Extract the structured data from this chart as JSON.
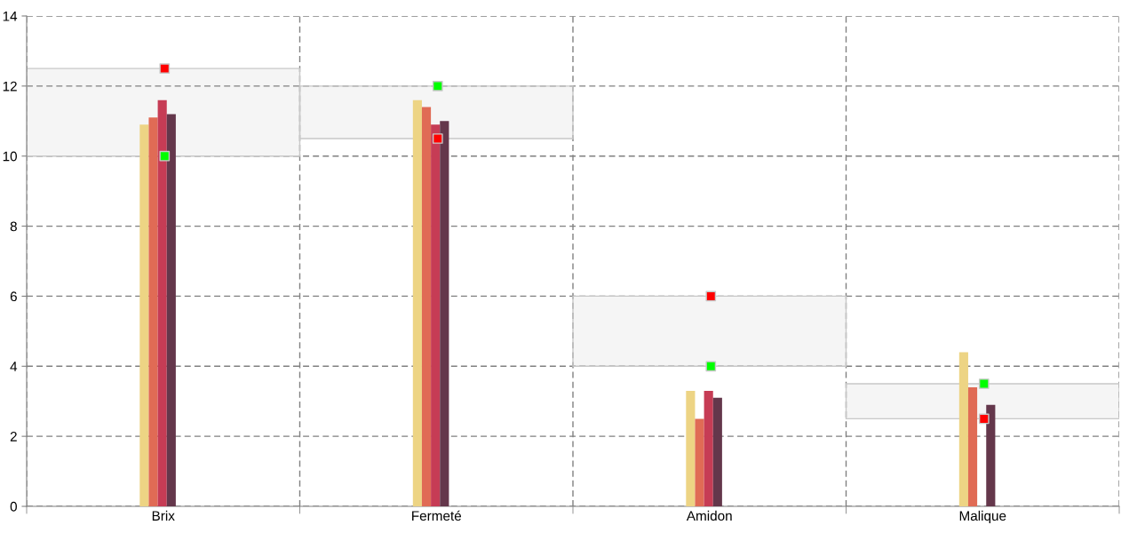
{
  "chart_data": {
    "type": "bar",
    "categories": [
      "Brix",
      "Fermeté",
      "Amidon",
      "Malique"
    ],
    "series": [
      {
        "color": "#edd484",
        "values": [
          10.9,
          11.6,
          3.3,
          4.4
        ]
      },
      {
        "color": "#e06b55",
        "values": [
          11.1,
          11.4,
          2.5,
          3.4
        ]
      },
      {
        "color": "#c63c55",
        "values": [
          11.6,
          10.9,
          3.3,
          0
        ]
      },
      {
        "color": "#64374b",
        "values": [
          11.2,
          11.0,
          3.1,
          2.9
        ]
      },
      {
        "type": "scatter",
        "color": "#ff0000",
        "values": [
          12.5,
          10.5,
          6,
          2.5
        ]
      },
      {
        "type": "scatter",
        "color": "#00ff00",
        "values": [
          10,
          12,
          4,
          3.5
        ]
      }
    ],
    "bands": [
      {
        "axis": "y",
        "from": 10,
        "to": 12.5,
        "color": "#c8c8c8"
      },
      {
        "axis": "y",
        "from": 10.5,
        "to": 12,
        "color": "#c8c8c8"
      },
      {
        "axis": "y",
        "from": 4,
        "to": 6,
        "color": "#c8c8c8"
      },
      {
        "axis": "y",
        "from": 2.5,
        "to": 3.5,
        "color": "#c8c8c8"
      }
    ],
    "marker": "square",
    "ylim": [
      0,
      14
    ],
    "yticks": [
      0,
      2,
      4,
      6,
      8,
      10,
      12,
      14
    ],
    "grid": true
  }
}
